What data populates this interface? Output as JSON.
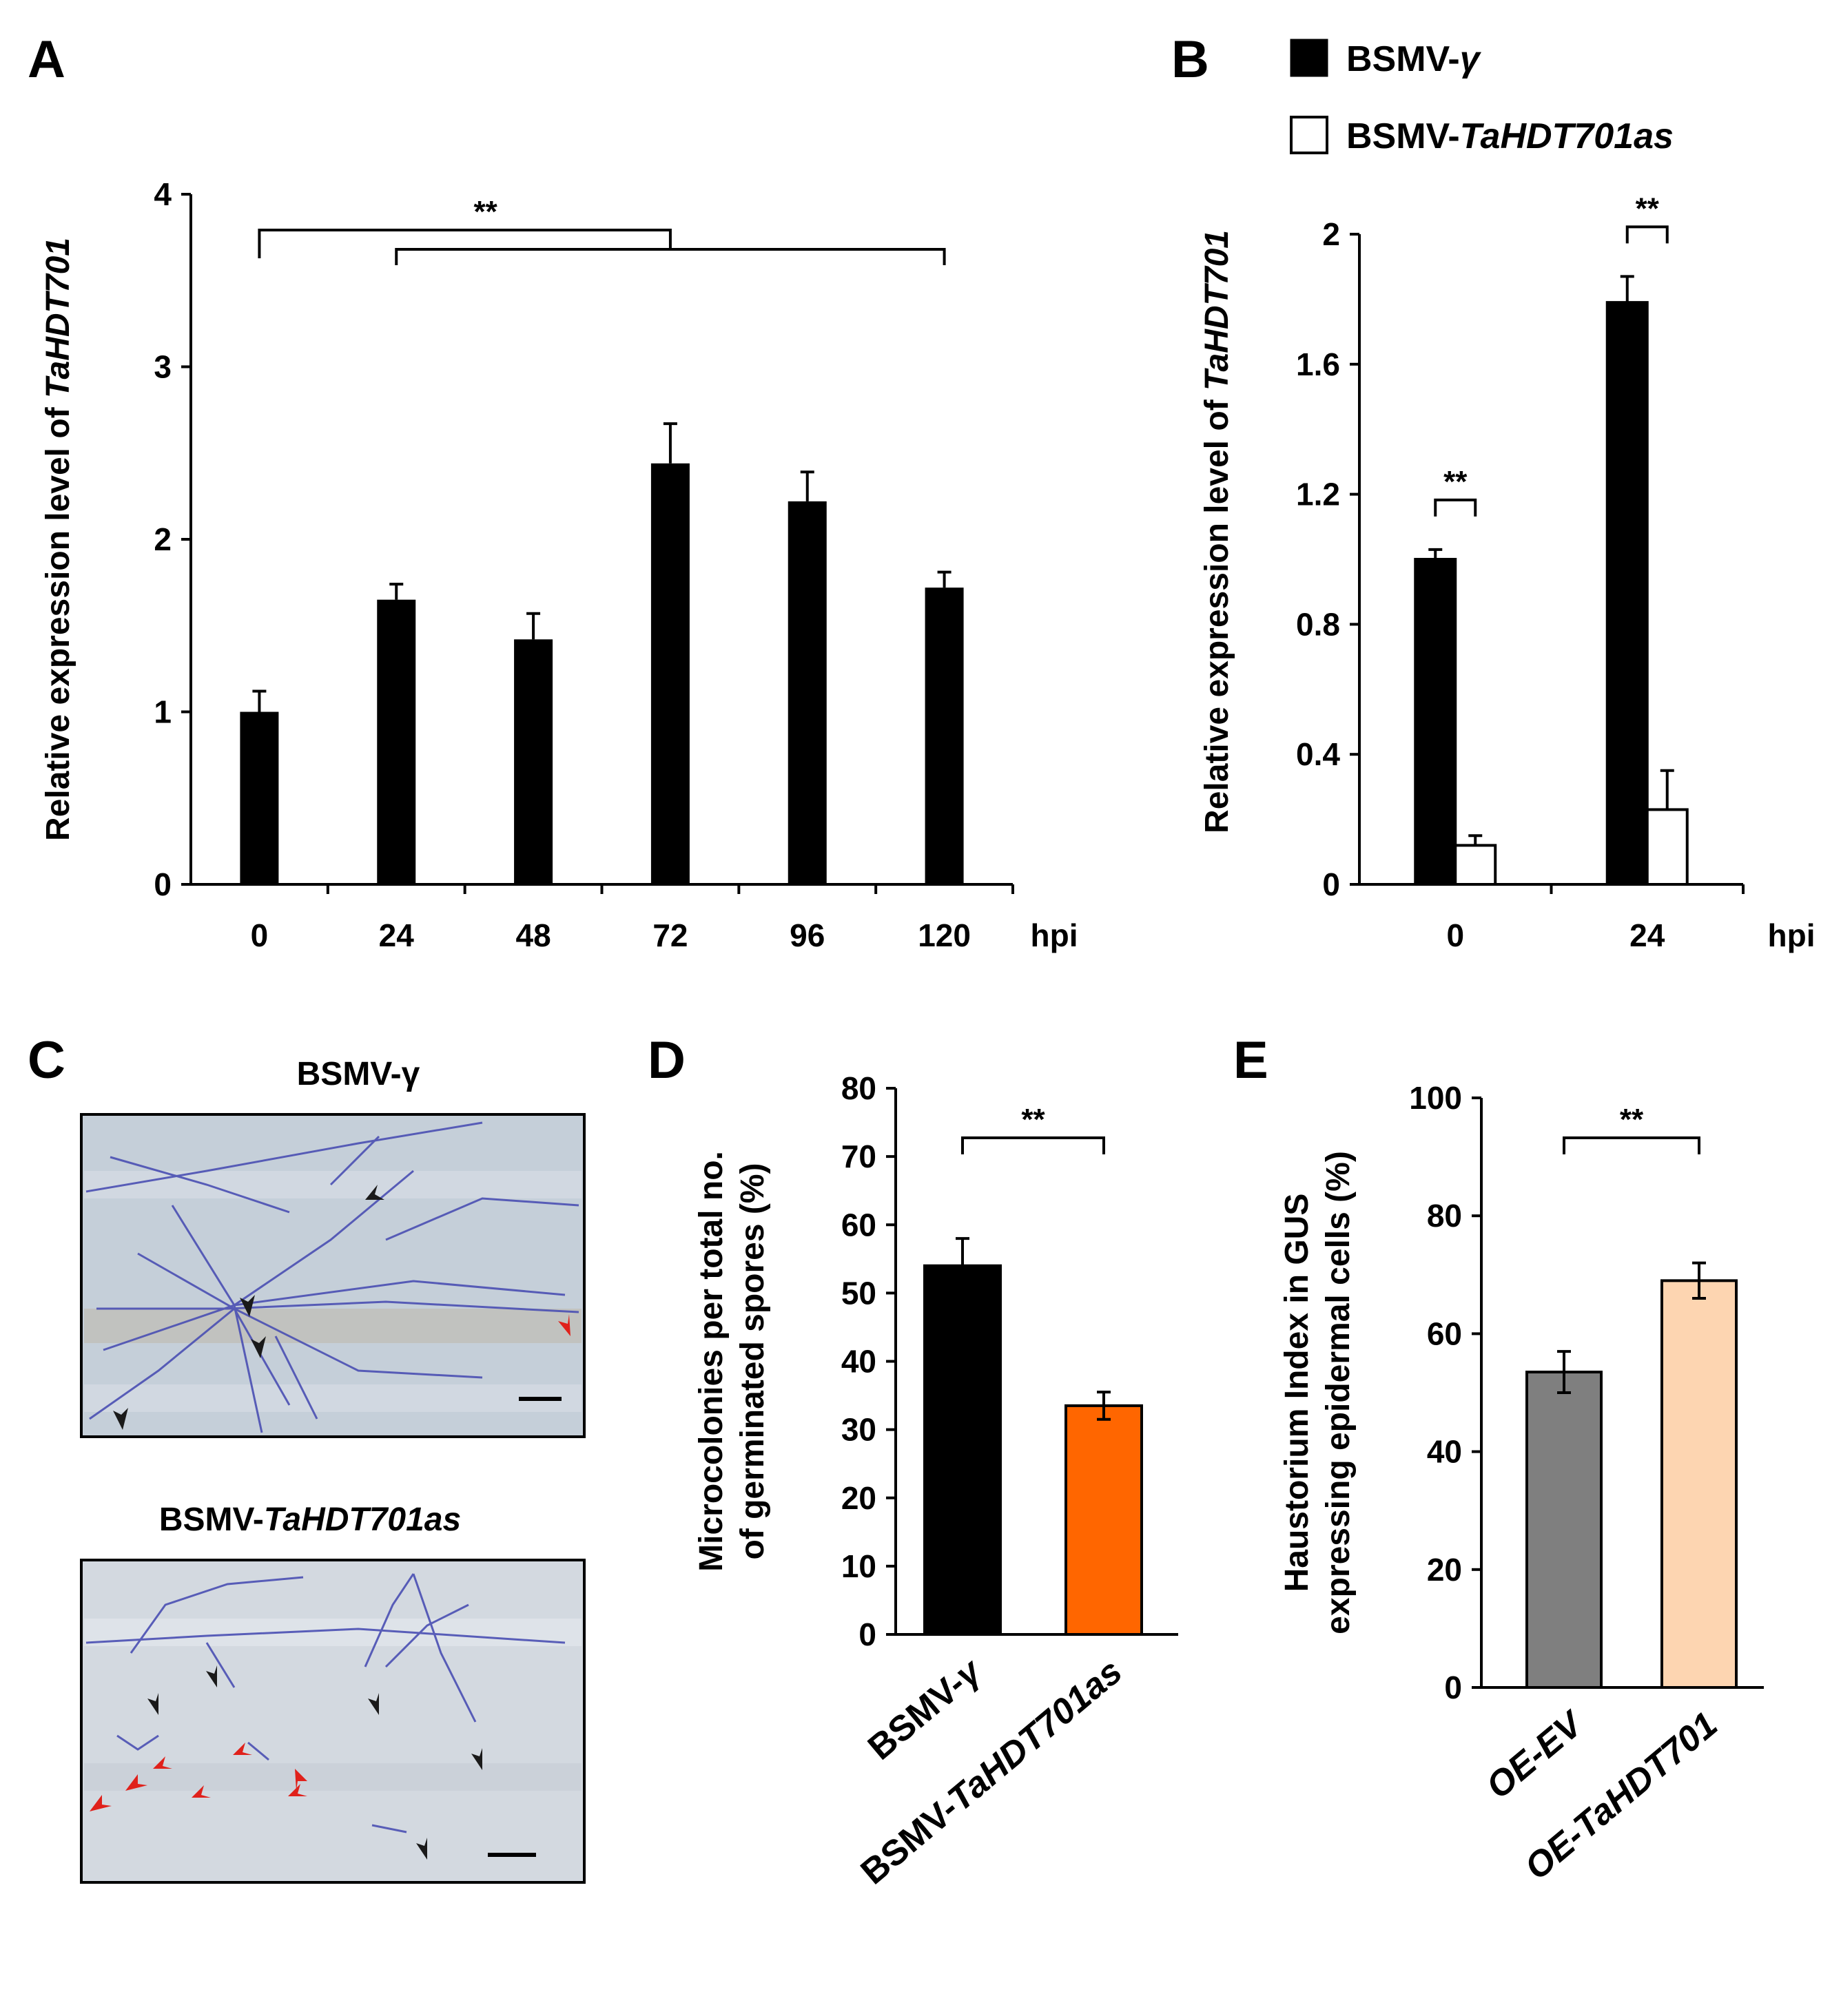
{
  "panels": {
    "A": {
      "letter": "A"
    },
    "B": {
      "letter": "B"
    },
    "C": {
      "letter": "C",
      "title_top": "BSMV-γ",
      "title_bottom_prefix": "BSMV-",
      "title_bottom_italic": "TaHDT701as"
    },
    "D": {
      "letter": "D"
    },
    "E": {
      "letter": "E"
    }
  },
  "legend": {
    "items": [
      {
        "prefix": "BSMV-",
        "italic": "γ",
        "color": "#000000"
      },
      {
        "prefix": "BSMV-",
        "italic": "TaHDT701as",
        "color": "#ffffff"
      }
    ]
  },
  "chart_data": [
    {
      "id": "A",
      "type": "bar",
      "title": "",
      "ylabel_prefix": "Relative expression level of ",
      "ylabel_italic": "TaHDT701",
      "xunit": "hpi",
      "categories": [
        "0",
        "24",
        "48",
        "72",
        "96",
        "120"
      ],
      "values": [
        1.0,
        1.65,
        1.42,
        2.44,
        2.22,
        1.72
      ],
      "errors": [
        0.12,
        0.09,
        0.15,
        0.23,
        0.17,
        0.09
      ],
      "ylim": [
        0,
        4
      ],
      "yticks": [
        "0",
        "1",
        "2",
        "3",
        "4"
      ],
      "bar_color": "#000000",
      "significance": "**"
    },
    {
      "id": "B",
      "type": "bar",
      "ylabel_prefix": "Relative expression level of ",
      "ylabel_italic": "TaHDT701",
      "xunit": "hpi",
      "categories": [
        "0",
        "24"
      ],
      "series": [
        {
          "name": "BSMV-γ",
          "values": [
            1.0,
            1.79
          ],
          "errors": [
            0.03,
            0.08
          ],
          "color": "#000000"
        },
        {
          "name": "BSMV-TaHDT701as",
          "values": [
            0.12,
            0.23
          ],
          "errors": [
            0.03,
            0.12
          ],
          "color": "#ffffff"
        }
      ],
      "ylim": [
        0,
        2
      ],
      "yticks": [
        "0",
        "0.4",
        "0.8",
        "1.2",
        "1.6",
        "2"
      ],
      "significance": [
        "**",
        "**"
      ]
    },
    {
      "id": "D",
      "type": "bar",
      "ylabel_line1": "Microcolonies per total no.",
      "ylabel_line2": "of germinated spores (%)",
      "categories": [
        {
          "prefix": "BSMV-",
          "italic": "γ"
        },
        {
          "prefix": "BSMV-",
          "italic": "TaHDT701as"
        }
      ],
      "values": [
        54,
        33.5
      ],
      "errors": [
        4,
        2
      ],
      "colors": [
        "#000000",
        "#ff6600"
      ],
      "ylim": [
        0,
        80
      ],
      "yticks": [
        "0",
        "10",
        "20",
        "30",
        "40",
        "50",
        "60",
        "70",
        "80"
      ],
      "significance": "**"
    },
    {
      "id": "E",
      "type": "bar",
      "ylabel_line1": "Haustorium Index in GUS",
      "ylabel_line2": "expressing  epidermal cells (%)",
      "categories": [
        "OE-EV",
        "OE-TaHDT701"
      ],
      "values": [
        53.5,
        69
      ],
      "errors": [
        3.5,
        3
      ],
      "colors": [
        "#7f7f7f",
        "#fdd5b1"
      ],
      "ylim": [
        0,
        100
      ],
      "yticks": [
        "0",
        "20",
        "40",
        "60",
        "80",
        "100"
      ],
      "significance": "**"
    }
  ]
}
